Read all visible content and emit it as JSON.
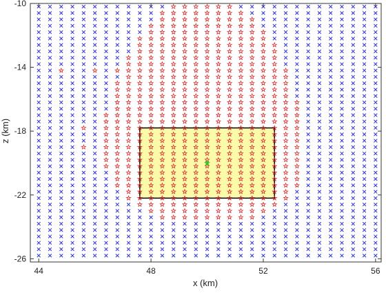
{
  "chart_data": {
    "type": "scatter",
    "title": "",
    "xlabel": "x (km)",
    "ylabel": "z (km)",
    "xlim": [
      43.7,
      56.2
    ],
    "ylim": [
      -26.2,
      -10
    ],
    "xticks": [
      44,
      48,
      52,
      56
    ],
    "xtick_labels": [
      "44",
      "48",
      "52",
      "56"
    ],
    "yticks": [
      -10,
      -14,
      -18,
      -22,
      -26
    ],
    "ytick_labels": [
      "-10",
      "-14",
      "-18",
      "-22",
      "-26"
    ],
    "grid": false,
    "legend": "none",
    "grid_points": {
      "x_start": 44.0,
      "x_step": 0.4,
      "x_count": 31,
      "z_start": -10.2,
      "z_step": 0.4,
      "z_count": 40,
      "x_marker_color": "#2f2fd9",
      "star_marker_color": "#d72b2b",
      "star_region_description_rows": "per z-row x-extent of red star markers",
      "star_rows": [
        {
          "z": -10.2,
          "xmin": 48.8,
          "xmax": 50.8
        },
        {
          "z": -10.6,
          "xmin": 48.4,
          "xmax": 51.2
        },
        {
          "z": -11.0,
          "xmin": 48.4,
          "xmax": 51.6
        },
        {
          "z": -11.4,
          "xmin": 48.0,
          "xmax": 51.6
        },
        {
          "z": -11.8,
          "xmin": 48.0,
          "xmax": 52.0
        },
        {
          "z": -12.2,
          "xmin": 47.6,
          "xmax": 52.0
        },
        {
          "z": -12.6,
          "xmin": 47.6,
          "xmax": 52.4
        },
        {
          "z": -13.0,
          "xmin": 47.6,
          "xmax": 52.4
        },
        {
          "z": -13.4,
          "xmin": 47.2,
          "xmax": 52.4
        },
        {
          "z": -13.8,
          "xmin": 47.2,
          "xmax": 52.4
        },
        {
          "z": -14.2,
          "xmin": 47.2,
          "xmax": 52.8
        },
        {
          "z": -14.6,
          "xmin": 47.2,
          "xmax": 52.8
        },
        {
          "z": -15.0,
          "xmin": 46.8,
          "xmax": 52.8
        },
        {
          "z": -15.4,
          "xmin": 46.8,
          "xmax": 52.8
        },
        {
          "z": -15.8,
          "xmin": 46.8,
          "xmax": 52.8
        },
        {
          "z": -16.2,
          "xmin": 46.8,
          "xmax": 53.2
        },
        {
          "z": -16.6,
          "xmin": 46.8,
          "xmax": 53.2
        },
        {
          "z": -17.0,
          "xmin": 46.4,
          "xmax": 53.2
        },
        {
          "z": -17.4,
          "xmin": 46.4,
          "xmax": 53.2
        },
        {
          "z": -17.8,
          "xmin": 46.4,
          "xmax": 53.2
        },
        {
          "z": -18.2,
          "xmin": 46.4,
          "xmax": 53.2
        },
        {
          "z": -18.6,
          "xmin": 46.4,
          "xmax": 53.2
        },
        {
          "z": -19.0,
          "xmin": 46.4,
          "xmax": 53.2
        },
        {
          "z": -19.4,
          "xmin": 46.4,
          "xmax": 53.2
        },
        {
          "z": -19.8,
          "xmin": 46.4,
          "xmax": 53.2
        },
        {
          "z": -20.2,
          "xmin": 46.4,
          "xmax": 53.2
        },
        {
          "z": -20.6,
          "xmin": 46.8,
          "xmax": 53.2
        },
        {
          "z": -21.0,
          "xmin": 46.8,
          "xmax": 53.2
        },
        {
          "z": -21.4,
          "xmin": 46.8,
          "xmax": 53.2
        },
        {
          "z": -21.8,
          "xmin": 47.2,
          "xmax": 52.8
        },
        {
          "z": -22.2,
          "xmin": 47.2,
          "xmax": 52.8
        },
        {
          "z": -22.6,
          "xmin": 47.6,
          "xmax": 52.4
        },
        {
          "z": -23.0,
          "xmin": 48.0,
          "xmax": 52.0
        },
        {
          "z": -23.4,
          "xmin": 48.4,
          "xmax": 51.6
        }
      ]
    },
    "sparse_stars": [
      {
        "x": 46.8,
        "z": -14.2
      },
      {
        "x": 46.0,
        "z": -14.2
      },
      {
        "x": 45.6,
        "z": -17.8
      },
      {
        "x": 45.6,
        "z": -19.0
      },
      {
        "x": 44.8,
        "z": -14.2
      }
    ],
    "highlight_box": {
      "x0": 47.6,
      "x1": 52.4,
      "z0": -22.2,
      "z1": -17.8,
      "fill": "#fafaa8",
      "stroke": "#000000"
    },
    "center_point": {
      "x": 50.0,
      "z": -20.0,
      "color": "#22d422"
    }
  }
}
